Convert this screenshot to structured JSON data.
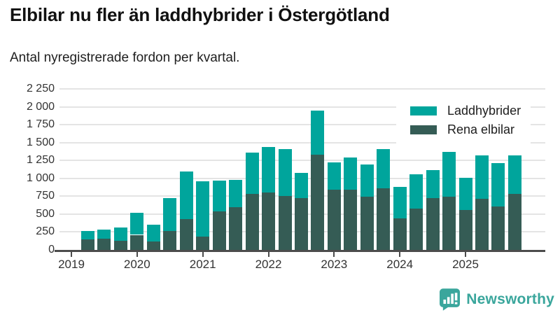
{
  "header": {
    "title": "Elbilar nu fler än laddhybrider i Östergötland",
    "subtitle": "Antal nyregistrerade fordon per kvartal."
  },
  "legend": [
    {
      "label": "Laddhybrider",
      "color": "#00a59c"
    },
    {
      "label": "Rena elbilar",
      "color": "#355c55"
    }
  ],
  "chart_data": {
    "type": "bar",
    "stacked": true,
    "title": "Elbilar nu fler än laddhybrider i Östergötland",
    "subtitle": "Antal nyregistrerade fordon per kvartal.",
    "xlabel": "",
    "ylabel": "",
    "ylim": [
      0,
      2250
    ],
    "grid": true,
    "legend_position": "top-right",
    "y_ticks": [
      0,
      250,
      500,
      750,
      1000,
      1250,
      1500,
      1750,
      2000,
      2250
    ],
    "y_tick_labels": [
      "0",
      "250",
      "500",
      "750",
      "1 000",
      "1 250",
      "1 500",
      "1 750",
      "2 000",
      "2 250"
    ],
    "x_tick_labels": [
      "2019",
      "2020",
      "2021",
      "2022",
      "2023",
      "2024",
      "2025"
    ],
    "quarters": [
      "2019 Q2",
      "2019 Q3",
      "2019 Q4",
      "2020 Q1",
      "2020 Q2",
      "2020 Q3",
      "2020 Q4",
      "2021 Q1",
      "2021 Q2",
      "2021 Q3",
      "2021 Q4",
      "2022 Q1",
      "2022 Q2",
      "2022 Q3",
      "2022 Q4",
      "2023 Q1",
      "2023 Q2",
      "2023 Q3",
      "2023 Q4",
      "2024 Q1",
      "2024 Q2",
      "2024 Q3",
      "2024 Q4",
      "2025 Q1",
      "2025 Q2",
      "2025 Q3",
      "2025 Q4"
    ],
    "series": [
      {
        "name": "Laddhybrider",
        "color": "#00a59c",
        "values": [
          115,
          120,
          180,
          310,
          235,
          455,
          660,
          765,
          430,
          375,
          575,
          630,
          655,
          355,
          620,
          375,
          450,
          450,
          545,
          445,
          475,
          400,
          625,
          455,
          605,
          605,
          540
        ]
      },
      {
        "name": "Rena elbilar",
        "color": "#355c55",
        "values": [
          150,
          160,
          130,
          210,
          120,
          265,
          435,
          190,
          535,
          600,
          785,
          805,
          755,
          725,
          1330,
          845,
          845,
          740,
          865,
          440,
          580,
          720,
          745,
          555,
          715,
          610,
          780
        ]
      }
    ]
  },
  "footer": {
    "brand": "Newsworthy"
  }
}
